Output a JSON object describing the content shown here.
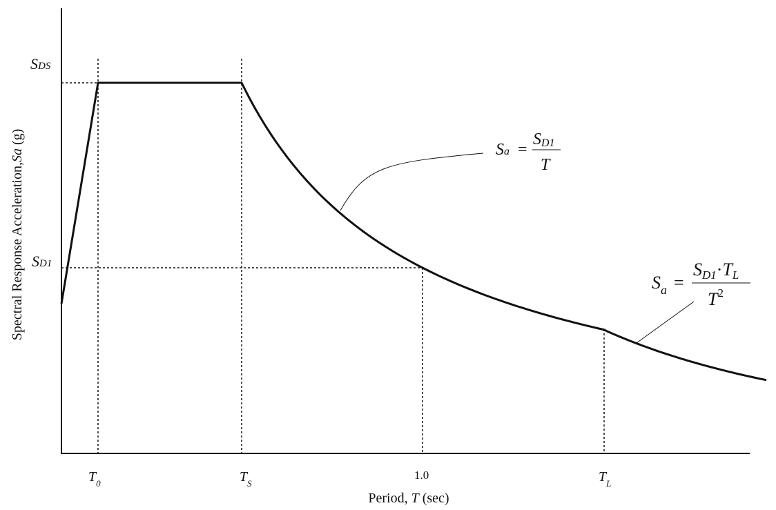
{
  "axes": {
    "x_label": {
      "pre": "Period, ",
      "var": "T",
      "post": " (sec)"
    },
    "y_label": {
      "pre": "Spectral Response Acceleration,",
      "var": "Sa",
      "post": " (g)"
    }
  },
  "y_markers": [
    {
      "main": "S",
      "sub": "DS"
    },
    {
      "main": "S",
      "sub": "D1"
    }
  ],
  "x_markers": [
    {
      "main": "T",
      "sub": "0"
    },
    {
      "main": "T",
      "sub": "S"
    },
    {
      "main": "1.0"
    },
    {
      "main": "T",
      "sub": "L"
    }
  ],
  "equations": [
    {
      "lhs": {
        "main": "S",
        "sub": "a"
      },
      "eq": "=",
      "num": {
        "main": "S",
        "sub": "D1"
      },
      "den": "T"
    },
    {
      "lhs": {
        "main": "S",
        "sub": "a"
      },
      "eq": "=",
      "num": {
        "a": "S",
        "a_sub": "D1",
        "op": "·",
        "b": "T",
        "b_sub": "L"
      },
      "den": {
        "main": "T",
        "sup": "2"
      }
    }
  ]
}
